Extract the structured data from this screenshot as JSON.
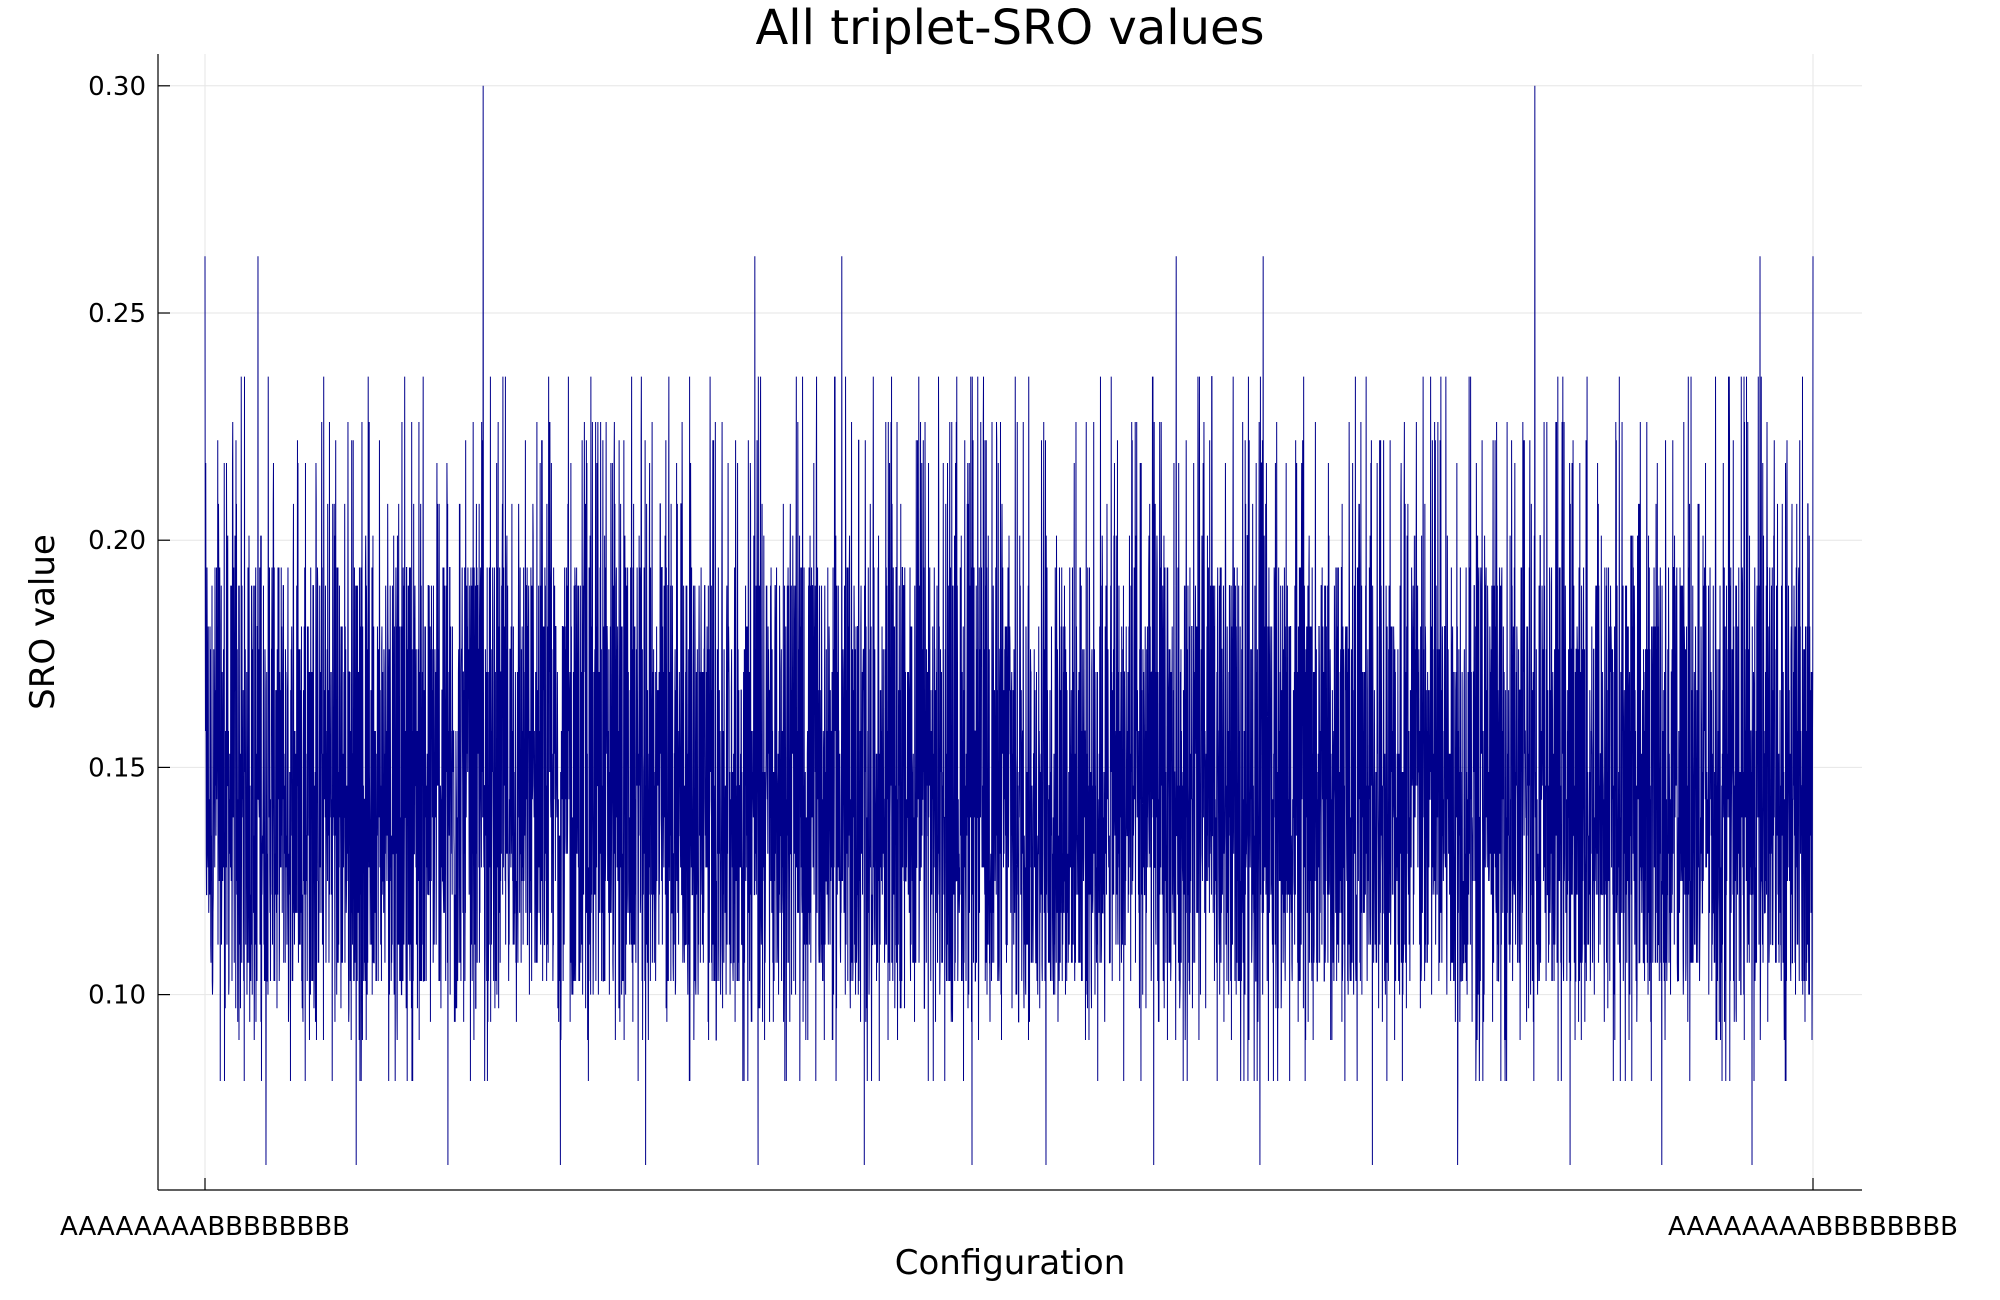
{
  "chart_data": {
    "type": "line",
    "title": "All triplet-SRO values",
    "xlabel": "Configuration",
    "ylabel": "SRO value",
    "x_tick_labels": [
      "AAAAAAAABBBBBBBB",
      "AAAAAAAABBBBBBBB"
    ],
    "y_ticks": [
      0.1,
      0.15,
      0.2,
      0.25,
      0.3
    ],
    "y_tick_labels": [
      "0.10",
      "0.15",
      "0.20",
      "0.25",
      "0.30"
    ],
    "ylim": [
      0.057,
      0.307
    ],
    "grid": true,
    "legend": "none",
    "series": [
      {
        "color": "#00008b",
        "point_count": 6435,
        "y_min": 0.0625,
        "y_max": 0.3,
        "levels": [
          0.0625,
          0.0725,
          0.0775,
          0.081,
          0.09,
          0.094,
          0.097,
          0.1,
          0.103,
          0.107,
          0.111,
          0.118,
          0.122,
          0.125,
          0.128,
          0.131,
          0.135,
          0.139,
          0.143,
          0.146,
          0.149,
          0.153,
          0.158,
          0.167,
          0.171,
          0.176,
          0.181,
          0.19,
          0.194,
          0.201,
          0.208,
          0.217,
          0.222,
          0.226,
          0.236,
          0.2625,
          0.3
        ],
        "peaks": [
          {
            "position": 0.0,
            "value": 0.2625
          },
          {
            "position": 0.033,
            "value": 0.2625
          },
          {
            "position": 0.173,
            "value": 0.3
          },
          {
            "position": 0.342,
            "value": 0.2625
          },
          {
            "position": 0.396,
            "value": 0.2625
          },
          {
            "position": 0.604,
            "value": 0.2625
          },
          {
            "position": 0.658,
            "value": 0.2625
          },
          {
            "position": 0.827,
            "value": 0.3
          },
          {
            "position": 0.967,
            "value": 0.2625
          },
          {
            "position": 1.0,
            "value": 0.2625
          }
        ],
        "troughs": [
          {
            "position": 0.038,
            "value": 0.0625
          },
          {
            "position": 0.094,
            "value": 0.0625
          },
          {
            "position": 0.151,
            "value": 0.0625
          },
          {
            "position": 0.221,
            "value": 0.0625
          },
          {
            "position": 0.274,
            "value": 0.0625
          },
          {
            "position": 0.344,
            "value": 0.0625
          },
          {
            "position": 0.41,
            "value": 0.0625
          },
          {
            "position": 0.477,
            "value": 0.0625
          },
          {
            "position": 0.523,
            "value": 0.0625
          },
          {
            "position": 0.59,
            "value": 0.0625
          },
          {
            "position": 0.656,
            "value": 0.0625
          },
          {
            "position": 0.726,
            "value": 0.0625
          },
          {
            "position": 0.779,
            "value": 0.0625
          },
          {
            "position": 0.849,
            "value": 0.0625
          },
          {
            "position": 0.906,
            "value": 0.0625
          },
          {
            "position": 0.962,
            "value": 0.0625
          }
        ]
      }
    ]
  }
}
